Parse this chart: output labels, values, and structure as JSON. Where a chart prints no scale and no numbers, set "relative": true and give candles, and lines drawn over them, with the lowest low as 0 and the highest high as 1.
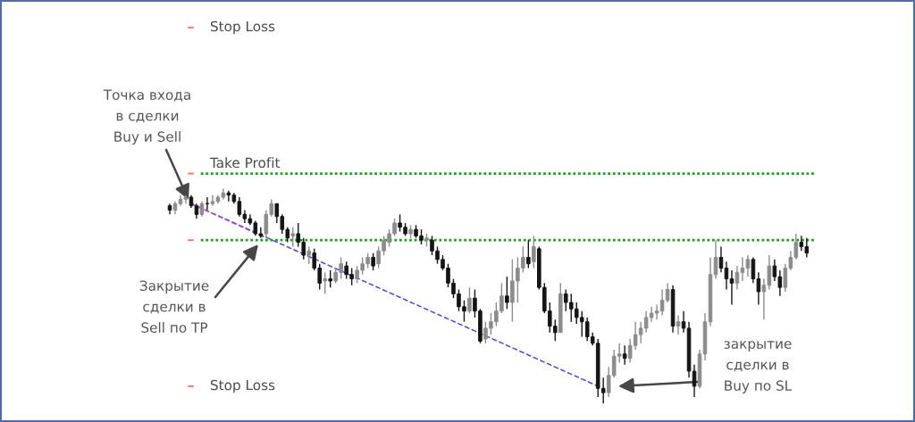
{
  "chart_data": {
    "type": "candlestick",
    "relative": true,
    "tick_labels": false,
    "categories": [
      null,
      null,
      null,
      null,
      null,
      null,
      null,
      null,
      null,
      null,
      null,
      null,
      null,
      null,
      null,
      null,
      null,
      null,
      null,
      null,
      null,
      null,
      null,
      null,
      null,
      null,
      null,
      null,
      null,
      null,
      null,
      null,
      null,
      null,
      null,
      null,
      null,
      null,
      null,
      null,
      null,
      null,
      null,
      null,
      null,
      null,
      null,
      null,
      null,
      null,
      null,
      null,
      null,
      null,
      null,
      null,
      null,
      null,
      null,
      null,
      null,
      null,
      null,
      null,
      null,
      null,
      null,
      null,
      null,
      null,
      null,
      null,
      null,
      null,
      null,
      null,
      null,
      null,
      null,
      null,
      null,
      null,
      null,
      null,
      null,
      null,
      null,
      null,
      null,
      null,
      null,
      null,
      null,
      null,
      null,
      null,
      null,
      null,
      null,
      null,
      null,
      null,
      null,
      null,
      null,
      null,
      null,
      null,
      null,
      null,
      null,
      null,
      null,
      null,
      null,
      null,
      null,
      null,
      null,
      null
    ],
    "ohlc": [
      [
        0.92,
        0.93,
        0.88,
        0.9
      ],
      [
        0.9,
        0.94,
        0.88,
        0.93
      ],
      [
        0.93,
        0.97,
        0.92,
        0.95
      ],
      [
        0.95,
        0.97,
        0.93,
        0.96
      ],
      [
        0.96,
        0.97,
        0.91,
        0.92
      ],
      [
        0.92,
        0.93,
        0.86,
        0.88
      ],
      [
        0.88,
        0.94,
        0.87,
        0.93
      ],
      [
        0.93,
        0.96,
        0.9,
        0.93
      ],
      [
        0.93,
        0.97,
        0.92,
        0.94
      ],
      [
        0.94,
        0.97,
        0.93,
        0.96
      ],
      [
        0.96,
        1.0,
        0.95,
        0.98
      ],
      [
        0.98,
        0.99,
        0.94,
        0.97
      ],
      [
        0.97,
        0.98,
        0.93,
        0.94
      ],
      [
        0.94,
        0.96,
        0.87,
        0.88
      ],
      [
        0.88,
        0.9,
        0.84,
        0.86
      ],
      [
        0.86,
        0.88,
        0.83,
        0.84
      ],
      [
        0.84,
        0.85,
        0.78,
        0.79
      ],
      [
        0.79,
        0.82,
        0.77,
        0.78
      ],
      [
        0.79,
        0.9,
        0.77,
        0.88
      ],
      [
        0.88,
        0.95,
        0.87,
        0.93
      ],
      [
        0.93,
        0.93,
        0.84,
        0.87
      ],
      [
        0.87,
        0.88,
        0.79,
        0.81
      ],
      [
        0.81,
        0.82,
        0.75,
        0.77
      ],
      [
        0.78,
        0.82,
        0.73,
        0.79
      ],
      [
        0.79,
        0.84,
        0.73,
        0.75
      ],
      [
        0.75,
        0.77,
        0.67,
        0.69
      ],
      [
        0.69,
        0.73,
        0.65,
        0.71
      ],
      [
        0.7,
        0.72,
        0.62,
        0.63
      ],
      [
        0.63,
        0.65,
        0.53,
        0.56
      ],
      [
        0.57,
        0.61,
        0.51,
        0.58
      ],
      [
        0.58,
        0.62,
        0.54,
        0.57
      ],
      [
        0.57,
        0.63,
        0.56,
        0.61
      ],
      [
        0.61,
        0.68,
        0.58,
        0.65
      ],
      [
        0.64,
        0.66,
        0.58,
        0.6
      ],
      [
        0.6,
        0.63,
        0.55,
        0.58
      ],
      [
        0.58,
        0.64,
        0.56,
        0.62
      ],
      [
        0.62,
        0.68,
        0.6,
        0.65
      ],
      [
        0.65,
        0.7,
        0.63,
        0.68
      ],
      [
        0.68,
        0.7,
        0.62,
        0.64
      ],
      [
        0.65,
        0.73,
        0.63,
        0.71
      ],
      [
        0.71,
        0.78,
        0.69,
        0.76
      ],
      [
        0.75,
        0.81,
        0.73,
        0.79
      ],
      [
        0.79,
        0.86,
        0.78,
        0.84
      ],
      [
        0.84,
        0.88,
        0.8,
        0.82
      ],
      [
        0.82,
        0.84,
        0.78,
        0.79
      ],
      [
        0.79,
        0.83,
        0.77,
        0.81
      ],
      [
        0.81,
        0.83,
        0.77,
        0.78
      ],
      [
        0.78,
        0.81,
        0.74,
        0.76
      ],
      [
        0.76,
        0.79,
        0.73,
        0.77
      ],
      [
        0.76,
        0.78,
        0.69,
        0.71
      ],
      [
        0.71,
        0.73,
        0.65,
        0.67
      ],
      [
        0.67,
        0.69,
        0.62,
        0.63
      ],
      [
        0.63,
        0.65,
        0.54,
        0.56
      ],
      [
        0.56,
        0.58,
        0.49,
        0.51
      ],
      [
        0.51,
        0.53,
        0.43,
        0.45
      ],
      [
        0.45,
        0.48,
        0.38,
        0.43
      ],
      [
        0.43,
        0.54,
        0.42,
        0.49
      ],
      [
        0.49,
        0.53,
        0.4,
        0.43
      ],
      [
        0.43,
        0.44,
        0.28,
        0.29
      ],
      [
        0.3,
        0.38,
        0.28,
        0.35
      ],
      [
        0.35,
        0.42,
        0.32,
        0.38
      ],
      [
        0.38,
        0.47,
        0.36,
        0.43
      ],
      [
        0.43,
        0.56,
        0.42,
        0.5
      ],
      [
        0.5,
        0.59,
        0.44,
        0.47
      ],
      [
        0.47,
        0.67,
        0.38,
        0.57
      ],
      [
        0.57,
        0.68,
        0.47,
        0.63
      ],
      [
        0.63,
        0.73,
        0.61,
        0.68
      ],
      [
        0.68,
        0.76,
        0.63,
        0.65
      ],
      [
        0.66,
        0.78,
        0.63,
        0.73
      ],
      [
        0.72,
        0.73,
        0.53,
        0.54
      ],
      [
        0.54,
        0.56,
        0.42,
        0.43
      ],
      [
        0.43,
        0.47,
        0.33,
        0.36
      ],
      [
        0.36,
        0.39,
        0.29,
        0.33
      ],
      [
        0.33,
        0.56,
        0.33,
        0.51
      ],
      [
        0.51,
        0.53,
        0.43,
        0.47
      ],
      [
        0.47,
        0.51,
        0.38,
        0.44
      ],
      [
        0.44,
        0.47,
        0.37,
        0.4
      ],
      [
        0.4,
        0.43,
        0.31,
        0.38
      ],
      [
        0.38,
        0.4,
        0.29,
        0.31
      ],
      [
        0.31,
        0.33,
        0.27,
        0.28
      ],
      [
        0.28,
        0.3,
        0.03,
        0.07
      ],
      [
        0.07,
        0.12,
        0.0,
        0.05
      ],
      [
        0.05,
        0.17,
        0.03,
        0.13
      ],
      [
        0.13,
        0.25,
        0.12,
        0.22
      ],
      [
        0.22,
        0.28,
        0.19,
        0.23
      ],
      [
        0.23,
        0.27,
        0.18,
        0.21
      ],
      [
        0.21,
        0.3,
        0.19,
        0.27
      ],
      [
        0.27,
        0.38,
        0.25,
        0.32
      ],
      [
        0.32,
        0.38,
        0.28,
        0.35
      ],
      [
        0.35,
        0.43,
        0.33,
        0.4
      ],
      [
        0.4,
        0.45,
        0.38,
        0.42
      ],
      [
        0.42,
        0.46,
        0.39,
        0.43
      ],
      [
        0.43,
        0.53,
        0.41,
        0.48
      ],
      [
        0.48,
        0.56,
        0.47,
        0.53
      ],
      [
        0.53,
        0.55,
        0.33,
        0.36
      ],
      [
        0.36,
        0.41,
        0.32,
        0.38
      ],
      [
        0.38,
        0.43,
        0.33,
        0.35
      ],
      [
        0.35,
        0.38,
        0.12,
        0.15
      ],
      [
        0.15,
        0.18,
        0.03,
        0.08
      ],
      [
        0.08,
        0.25,
        0.07,
        0.23
      ],
      [
        0.23,
        0.42,
        0.2,
        0.38
      ],
      [
        0.38,
        0.68,
        0.36,
        0.6
      ],
      [
        0.6,
        0.76,
        0.58,
        0.68
      ],
      [
        0.68,
        0.73,
        0.61,
        0.63
      ],
      [
        0.63,
        0.66,
        0.53,
        0.58
      ],
      [
        0.58,
        0.62,
        0.46,
        0.56
      ],
      [
        0.56,
        0.64,
        0.53,
        0.61
      ],
      [
        0.61,
        0.68,
        0.57,
        0.63
      ],
      [
        0.63,
        0.69,
        0.59,
        0.67
      ],
      [
        0.67,
        0.68,
        0.56,
        0.58
      ],
      [
        0.58,
        0.61,
        0.46,
        0.52
      ],
      [
        0.52,
        0.58,
        0.39,
        0.55
      ],
      [
        0.55,
        0.69,
        0.53,
        0.64
      ],
      [
        0.64,
        0.67,
        0.57,
        0.59
      ],
      [
        0.59,
        0.62,
        0.5,
        0.54
      ],
      [
        0.54,
        0.65,
        0.52,
        0.63
      ],
      [
        0.63,
        0.71,
        0.62,
        0.68
      ],
      [
        0.68,
        0.79,
        0.67,
        0.75
      ],
      [
        0.75,
        0.78,
        0.71,
        0.73
      ],
      [
        0.73,
        0.77,
        0.68,
        0.7
      ]
    ],
    "colors": [
      "#151515",
      "#8c8c8c",
      "#8c8c8c",
      "#8c8c8c",
      "#151515",
      "#151515",
      "#8c8c8c",
      "#151515",
      "#8c8c8c",
      "#8c8c8c",
      "#8c8c8c",
      "#151515",
      "#151515",
      "#151515",
      "#151515",
      "#151515",
      "#151515",
      "#151515",
      "#8c8c8c",
      "#8c8c8c",
      "#151515",
      "#151515",
      "#151515",
      "#8c8c8c",
      "#151515",
      "#151515",
      "#8c8c8c",
      "#151515",
      "#151515",
      "#8c8c8c",
      "#151515",
      "#8c8c8c",
      "#8c8c8c",
      "#151515",
      "#151515",
      "#8c8c8c",
      "#8c8c8c",
      "#8c8c8c",
      "#151515",
      "#8c8c8c",
      "#8c8c8c",
      "#8c8c8c",
      "#8c8c8c",
      "#151515",
      "#151515",
      "#8c8c8c",
      "#151515",
      "#151515",
      "#8c8c8c",
      "#151515",
      "#151515",
      "#151515",
      "#151515",
      "#151515",
      "#151515",
      "#151515",
      "#8c8c8c",
      "#151515",
      "#151515",
      "#8c8c8c",
      "#8c8c8c",
      "#8c8c8c",
      "#8c8c8c",
      "#151515",
      "#8c8c8c",
      "#8c8c8c",
      "#8c8c8c",
      "#151515",
      "#8c8c8c",
      "#151515",
      "#151515",
      "#151515",
      "#151515",
      "#8c8c8c",
      "#151515",
      "#151515",
      "#151515",
      "#151515",
      "#151515",
      "#151515",
      "#151515",
      "#151515",
      "#8c8c8c",
      "#8c8c8c",
      "#8c8c8c",
      "#151515",
      "#8c8c8c",
      "#8c8c8c",
      "#8c8c8c",
      "#8c8c8c",
      "#8c8c8c",
      "#8c8c8c",
      "#8c8c8c",
      "#8c8c8c",
      "#151515",
      "#8c8c8c",
      "#151515",
      "#151515",
      "#151515",
      "#8c8c8c",
      "#8c8c8c",
      "#8c8c8c",
      "#8c8c8c",
      "#151515",
      "#151515",
      "#151515",
      "#8c8c8c",
      "#8c8c8c",
      "#8c8c8c",
      "#151515",
      "#151515",
      "#8c8c8c",
      "#8c8c8c",
      "#151515",
      "#151515",
      "#8c8c8c",
      "#8c8c8c",
      "#8c8c8c",
      "#151515",
      "#151515"
    ],
    "series": [
      {
        "type": "line",
        "color": "#4a4ad6",
        "line_style": "dotted",
        "values": [
          null,
          null,
          null,
          null,
          0.93,
          null,
          null,
          null,
          null,
          null,
          null,
          null,
          null,
          null,
          null,
          null,
          null,
          null,
          null,
          null,
          null,
          null,
          null,
          null,
          null,
          null,
          null,
          null,
          null,
          null,
          null,
          null,
          null,
          null,
          null,
          null,
          null,
          null,
          null,
          null,
          null,
          null,
          null,
          null,
          null,
          null,
          null,
          null,
          null,
          null,
          null,
          null,
          null,
          null,
          null,
          null,
          null,
          null,
          null,
          null,
          null,
          null,
          null,
          null,
          null,
          null,
          null,
          null,
          null,
          null,
          null,
          null,
          null,
          null,
          null,
          null,
          null,
          null,
          null,
          null,
          0.08,
          null,
          null,
          null,
          null,
          null,
          null,
          null,
          null,
          null,
          null,
          null,
          null,
          null,
          null,
          null,
          null,
          null,
          null,
          null,
          null,
          null,
          null,
          null,
          null,
          null,
          null,
          null,
          null,
          null,
          null,
          null,
          null,
          null,
          null,
          null,
          null,
          null,
          null,
          null
        ]
      },
      {
        "type": "line",
        "color": "#a552c2",
        "line_style": "dotted",
        "values": [
          null,
          null,
          null,
          null,
          0.93,
          null,
          null,
          null,
          null,
          null,
          null,
          null,
          null,
          null,
          null,
          null,
          null,
          null,
          0.77,
          null,
          null,
          null,
          null,
          null,
          null,
          null,
          null,
          null,
          null,
          null,
          null,
          null,
          null,
          null,
          null,
          null,
          null,
          null,
          null,
          null,
          null,
          null,
          null,
          null,
          null,
          null,
          null,
          null,
          null,
          null,
          null,
          null,
          null,
          null,
          null,
          null,
          null,
          null,
          null,
          null,
          null,
          null,
          null,
          null,
          null,
          null,
          null,
          null,
          null,
          null,
          null,
          null,
          null,
          null,
          null,
          null,
          null,
          null,
          null,
          null,
          null,
          null,
          null,
          null,
          null,
          null,
          null,
          null,
          null,
          null,
          null,
          null,
          null,
          null,
          null,
          null,
          null,
          null,
          null,
          null,
          null,
          null,
          null,
          null,
          null,
          null,
          null,
          null,
          null,
          null,
          null,
          null,
          null,
          null,
          null,
          null,
          null,
          null,
          null,
          null
        ]
      }
    ],
    "ref_lines": [
      {
        "axis": "y",
        "value": 1.75,
        "label": "Stop Loss",
        "color": "#e87a72"
      },
      {
        "axis": "y",
        "value": 1.07,
        "label": "Take Profit",
        "color": "#1f9e1f",
        "line_style": "dotted"
      },
      {
        "axis": "y",
        "value": 0.76,
        "color": "#1f9e1f",
        "line_style": "dotted"
      },
      {
        "axis": "y",
        "value": 0.08,
        "label": "Stop Loss",
        "color": "#e87a72"
      }
    ],
    "annotations": [
      "Точка входа\nв сделки\nBuy и Sell",
      "Закрытие\nсделки в\nSell по TP",
      "закрытие\nсделки в\nBuy по SL"
    ]
  }
}
